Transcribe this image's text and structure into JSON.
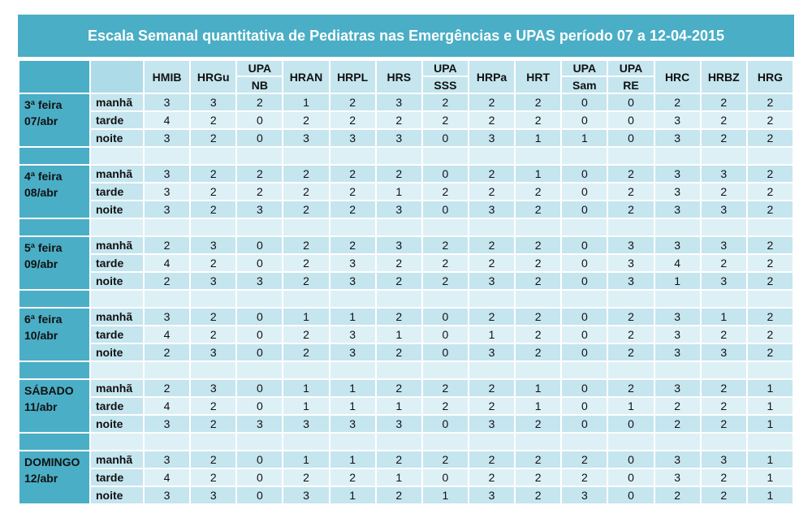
{
  "title": "Escala Semanal quantitativa de Pediatras nas Emergências e UPAS período 07 a 12-04-2015",
  "columns": [
    {
      "line1": "HMIB",
      "line2": ""
    },
    {
      "line1": "HRGu",
      "line2": ""
    },
    {
      "line1": "UPA",
      "line2": "NB"
    },
    {
      "line1": "HRAN",
      "line2": ""
    },
    {
      "line1": "HRPL",
      "line2": ""
    },
    {
      "line1": "HRS",
      "line2": ""
    },
    {
      "line1": "UPA",
      "line2": "SSS"
    },
    {
      "line1": "HRPa",
      "line2": ""
    },
    {
      "line1": "HRT",
      "line2": ""
    },
    {
      "line1": "UPA",
      "line2": "Sam"
    },
    {
      "line1": "UPA",
      "line2": "RE"
    },
    {
      "line1": "HRC",
      "line2": ""
    },
    {
      "line1": "HRBZ",
      "line2": ""
    },
    {
      "line1": "HRG",
      "line2": ""
    }
  ],
  "days": [
    {
      "name": "3ª feira",
      "date": "07/abr",
      "rows": [
        {
          "shift": "manhã",
          "values": [
            "3",
            "3",
            "2",
            "1",
            "2",
            "3",
            "2",
            "2",
            "2",
            "0",
            "0",
            "2",
            "2",
            "2"
          ]
        },
        {
          "shift": "tarde",
          "values": [
            "4",
            "2",
            "0",
            "2",
            "2",
            "2",
            "2",
            "2",
            "2",
            "0",
            "0",
            "3",
            "2",
            "2"
          ]
        },
        {
          "shift": "noite",
          "values": [
            "3",
            "2",
            "0",
            "3",
            "3",
            "3",
            "0",
            "3",
            "1",
            "1",
            "0",
            "3",
            "2",
            "2"
          ]
        }
      ]
    },
    {
      "name": "4ª feira",
      "date": "08/abr",
      "rows": [
        {
          "shift": "manhã",
          "values": [
            "3",
            "2",
            "2",
            "2",
            "2",
            "2",
            "0",
            "2",
            "1",
            "0",
            "2",
            "3",
            "3",
            "2"
          ]
        },
        {
          "shift": "tarde",
          "values": [
            "3",
            "2",
            "2",
            "2",
            "2",
            "1",
            "2",
            "2",
            "2",
            "0",
            "2",
            "3",
            "2",
            "2"
          ]
        },
        {
          "shift": "noite",
          "values": [
            "3",
            "2",
            "3",
            "2",
            "2",
            "3",
            "0",
            "3",
            "2",
            "0",
            "2",
            "3",
            "3",
            "2"
          ]
        }
      ]
    },
    {
      "name": "5ª feira",
      "date": "09/abr",
      "rows": [
        {
          "shift": "manhã",
          "values": [
            "2",
            "3",
            "0",
            "2",
            "2",
            "3",
            "2",
            "2",
            "2",
            "0",
            "3",
            "3",
            "3",
            "2"
          ]
        },
        {
          "shift": "tarde",
          "values": [
            "4",
            "2",
            "0",
            "2",
            "3",
            "2",
            "2",
            "2",
            "2",
            "0",
            "3",
            "4",
            "2",
            "2"
          ]
        },
        {
          "shift": "noite",
          "values": [
            "2",
            "3",
            "3",
            "2",
            "3",
            "2",
            "2",
            "3",
            "2",
            "0",
            "3",
            "1",
            "3",
            "2"
          ]
        }
      ]
    },
    {
      "name": "6ª feira",
      "date": "10/abr",
      "rows": [
        {
          "shift": "manhã",
          "values": [
            "3",
            "2",
            "0",
            "1",
            "1",
            "2",
            "0",
            "2",
            "2",
            "0",
            "2",
            "3",
            "1",
            "2"
          ]
        },
        {
          "shift": "tarde",
          "values": [
            "4",
            "2",
            "0",
            "2",
            "3",
            "1",
            "0",
            "1",
            "2",
            "0",
            "2",
            "3",
            "2",
            "2"
          ]
        },
        {
          "shift": "noite",
          "values": [
            "2",
            "3",
            "0",
            "2",
            "3",
            "2",
            "0",
            "3",
            "2",
            "0",
            "2",
            "3",
            "3",
            "2"
          ]
        }
      ]
    },
    {
      "name": "SÁBADO",
      "date": "11/abr",
      "rows": [
        {
          "shift": "manhã",
          "values": [
            "2",
            "3",
            "0",
            "1",
            "1",
            "2",
            "2",
            "2",
            "1",
            "0",
            "2",
            "3",
            "2",
            "1"
          ]
        },
        {
          "shift": "tarde",
          "values": [
            "4",
            "2",
            "0",
            "1",
            "1",
            "1",
            "2",
            "2",
            "1",
            "0",
            "1",
            "2",
            "2",
            "1"
          ]
        },
        {
          "shift": "noite",
          "values": [
            "3",
            "2",
            "3",
            "3",
            "3",
            "3",
            "0",
            "3",
            "2",
            "0",
            "0",
            "2",
            "2",
            "1"
          ]
        }
      ]
    },
    {
      "name": "DOMINGO",
      "date": "12/abr",
      "rows": [
        {
          "shift": "manhã",
          "values": [
            "3",
            "2",
            "0",
            "1",
            "1",
            "2",
            "2",
            "2",
            "2",
            "2",
            "0",
            "3",
            "3",
            "1"
          ]
        },
        {
          "shift": "tarde",
          "values": [
            "4",
            "2",
            "0",
            "2",
            "2",
            "1",
            "0",
            "2",
            "2",
            "2",
            "0",
            "3",
            "2",
            "1"
          ]
        },
        {
          "shift": "noite",
          "values": [
            "3",
            "3",
            "0",
            "3",
            "1",
            "2",
            "1",
            "3",
            "2",
            "3",
            "0",
            "2",
            "2",
            "1"
          ]
        }
      ]
    }
  ]
}
